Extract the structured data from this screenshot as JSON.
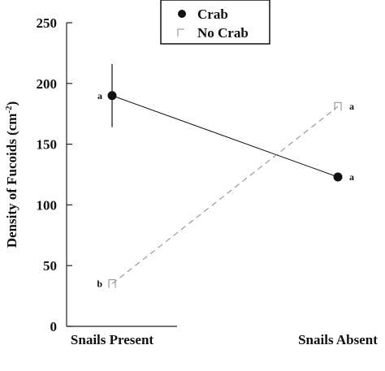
{
  "chart_data": {
    "type": "line",
    "categories": [
      "Snails Present",
      "Snails Absent"
    ],
    "ylabel": "Density of Fucoids (cm",
    "ylabel_sup": "-2",
    "ylabel_end": ")",
    "ylim": [
      0,
      250
    ],
    "yticks": [
      0,
      50,
      100,
      150,
      200,
      250
    ],
    "legend_position": "top-center",
    "series": [
      {
        "name": "Crab",
        "marker": "filled-circle",
        "line": "solid",
        "color": "#111111",
        "values": [
          190,
          123
        ],
        "error": [
          26,
          null
        ],
        "letters": [
          "a",
          "a"
        ]
      },
      {
        "name": "No Crab",
        "marker": "open-square",
        "line": "dashed",
        "color": "#888888",
        "values": [
          35,
          181
        ],
        "error": [
          null,
          null
        ],
        "letters": [
          "b",
          "a"
        ]
      }
    ]
  }
}
